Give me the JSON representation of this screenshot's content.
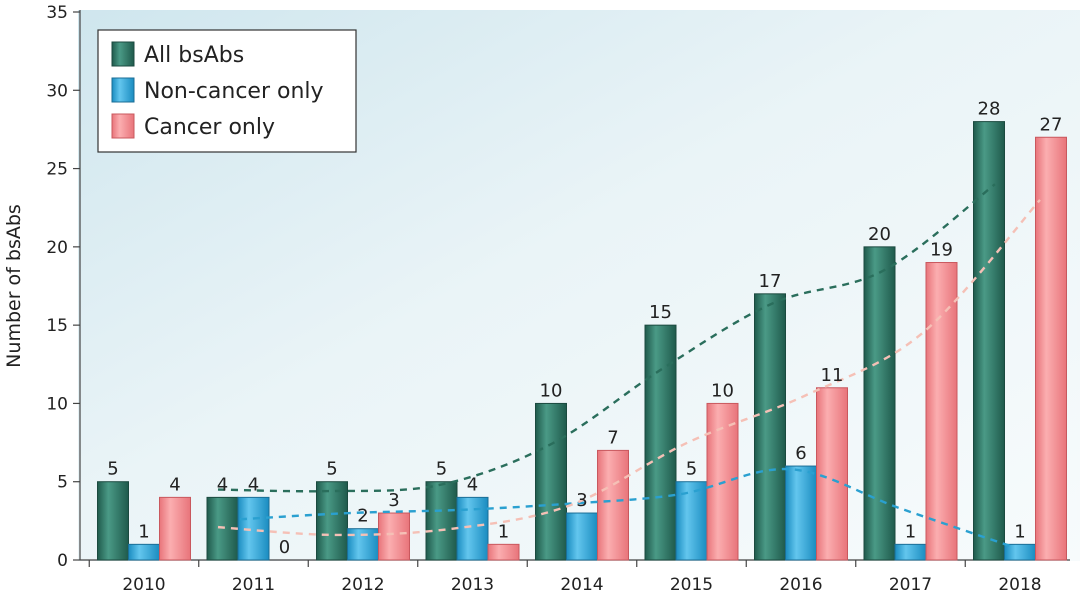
{
  "chart_data": {
    "type": "bar",
    "title": "",
    "xlabel": "",
    "ylabel": "Number of bsAbs",
    "ylim": [
      0,
      35
    ],
    "yticks": [
      0,
      5,
      10,
      15,
      20,
      25,
      30,
      35
    ],
    "categories": [
      "2010",
      "2011",
      "2012",
      "2013",
      "2014",
      "2015",
      "2016",
      "2017",
      "2018"
    ],
    "series": [
      {
        "name": "All bsAbs",
        "color": "#2f7a68",
        "trend_color": "#2a6e5c",
        "values": [
          5,
          4,
          5,
          5,
          10,
          15,
          17,
          20,
          28
        ]
      },
      {
        "name": "Non-cancer only",
        "color": "#3aaede",
        "trend_color": "#2aa0d0",
        "values": [
          1,
          4,
          2,
          4,
          3,
          5,
          6,
          1,
          1
        ]
      },
      {
        "name": "Cancer only",
        "color": "#f48a8f",
        "trend_color": "#f5c0b6",
        "values": [
          4,
          0,
          3,
          1,
          7,
          10,
          11,
          19,
          27
        ]
      }
    ],
    "trend_lines": [
      {
        "series": "All bsAbs",
        "values": [
          4.5,
          4.4,
          4.8,
          7.4,
          12.2,
          16.4,
          18.5,
          24.0
        ]
      },
      {
        "series": "Non-cancer only",
        "values": [
          2.6,
          3.0,
          3.2,
          3.6,
          4.2,
          5.8,
          3.3,
          0.9
        ]
      },
      {
        "series": "Cancer only",
        "values": [
          2.1,
          1.6,
          2.0,
          3.5,
          7.5,
          10.5,
          14.5,
          23.0
        ]
      }
    ],
    "legend_position": "top-left",
    "grid": false
  }
}
